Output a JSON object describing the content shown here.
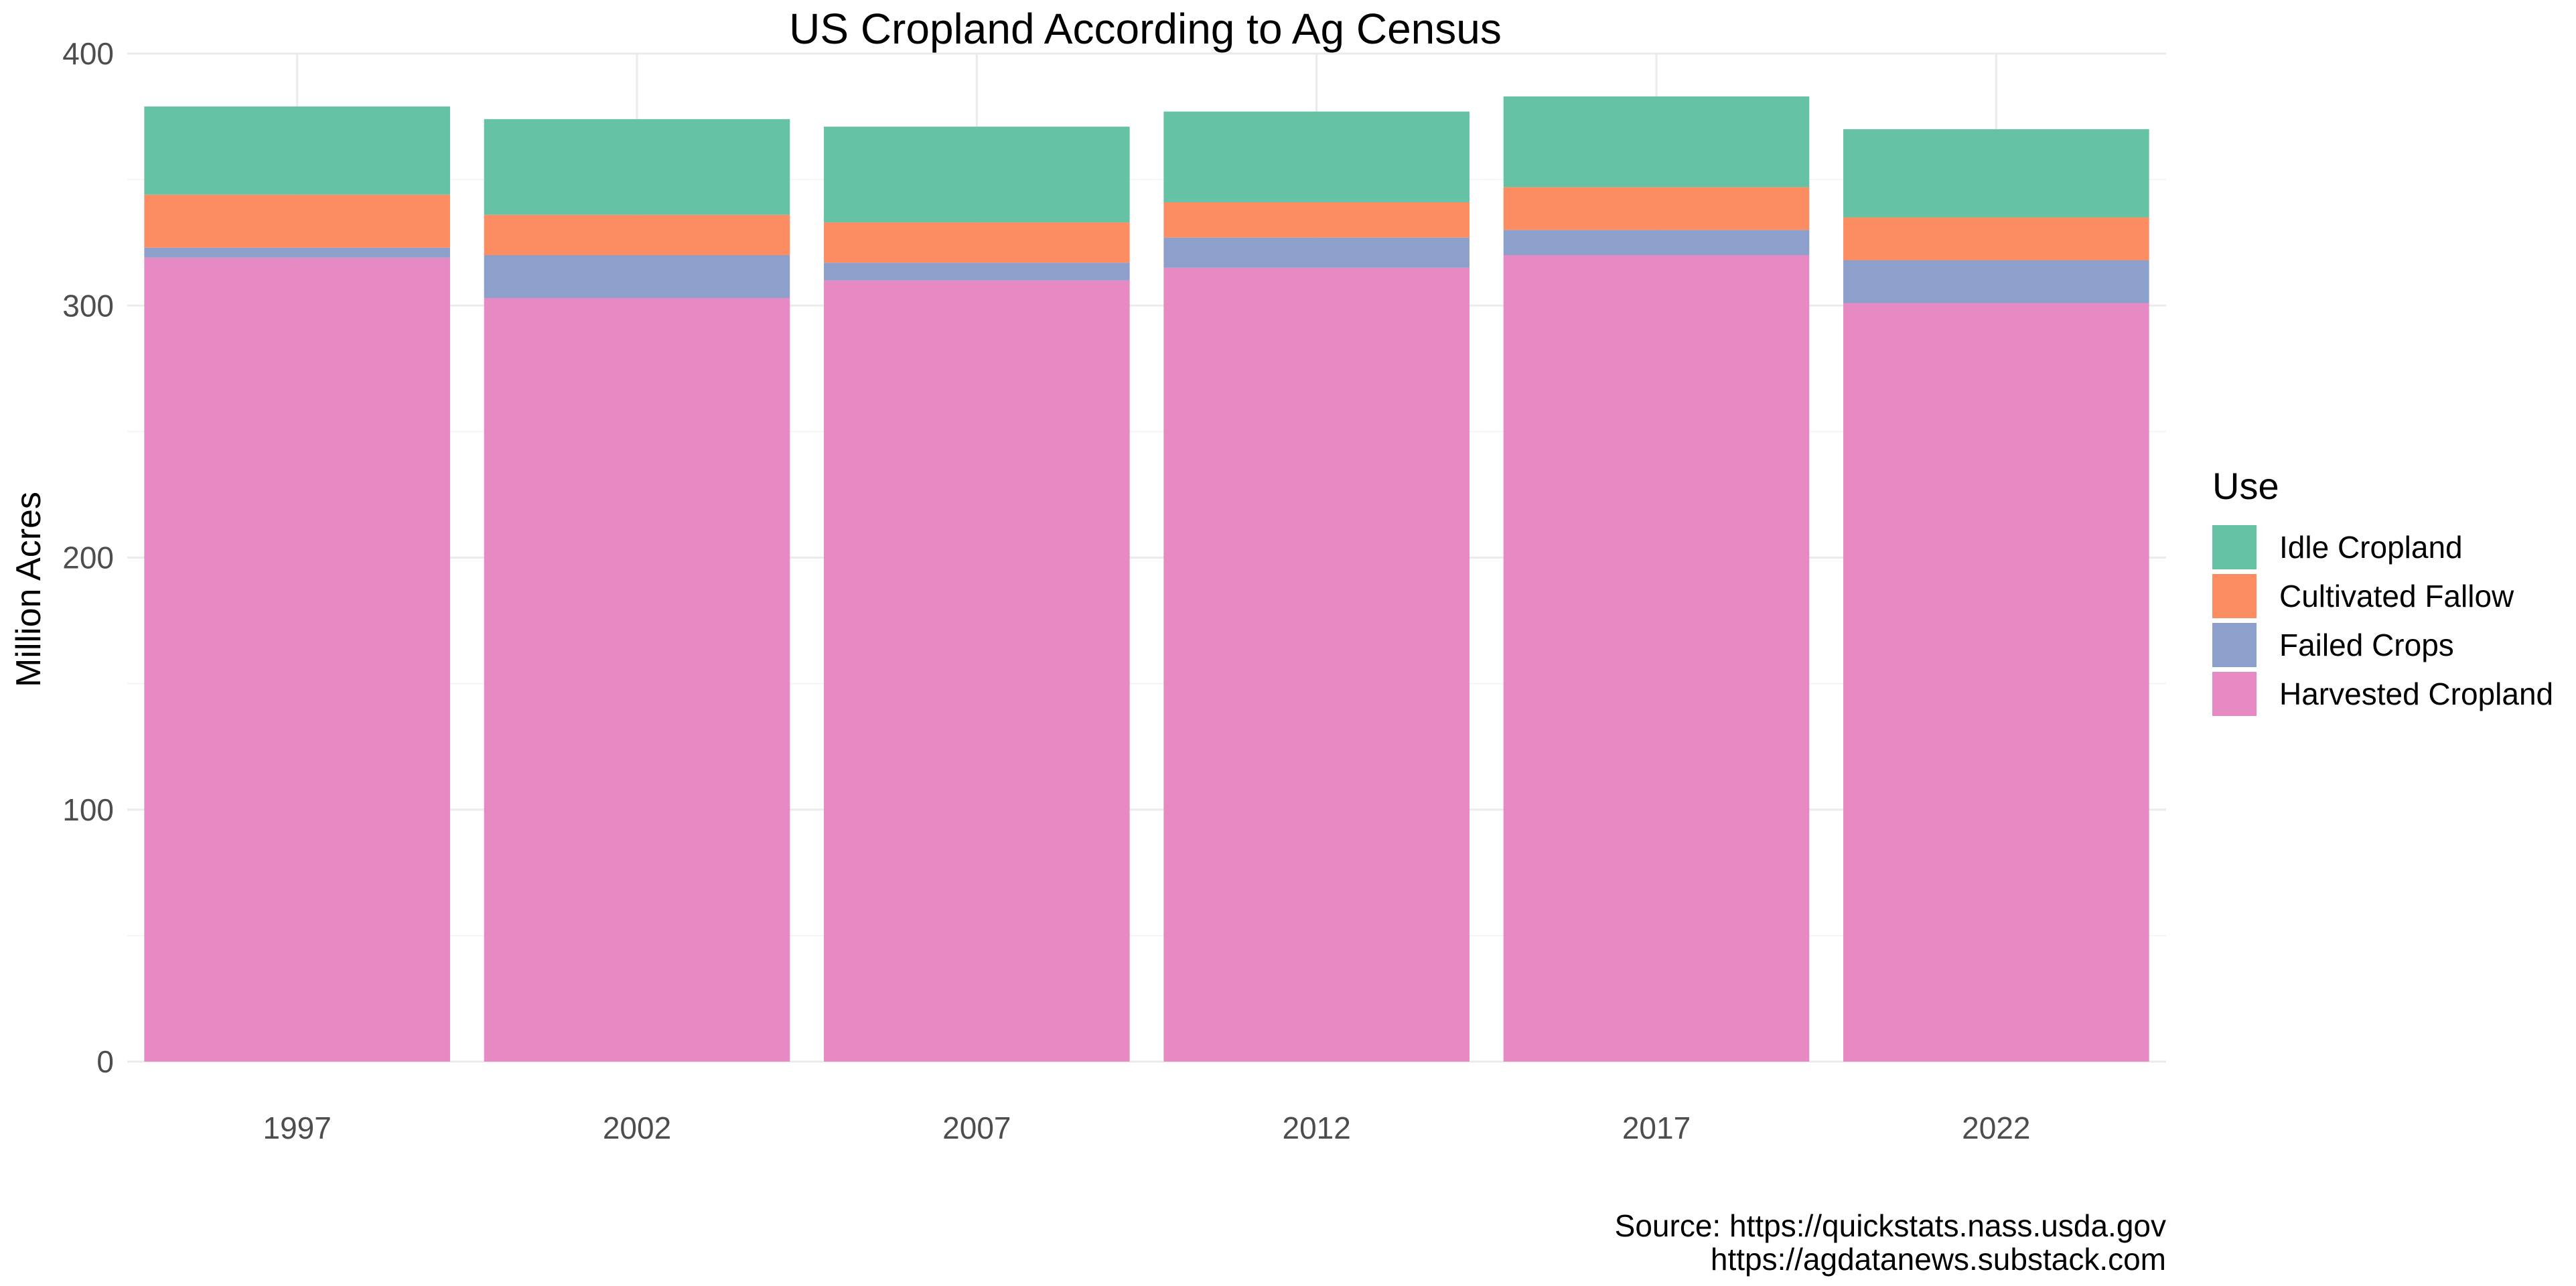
{
  "chart_data": {
    "type": "bar",
    "stacked": true,
    "title": "US Cropland According to Ag Census",
    "xlabel": "",
    "ylabel": "Million Acres",
    "ylim": [
      0,
      400
    ],
    "yticks": [
      0,
      100,
      200,
      300,
      400
    ],
    "categories": [
      "1997",
      "2002",
      "2007",
      "2012",
      "2017",
      "2022"
    ],
    "series": [
      {
        "name": "Harvested Cropland",
        "color": "#E78AC3",
        "values": [
          319,
          303,
          310,
          315,
          320,
          301
        ]
      },
      {
        "name": "Failed Crops",
        "color": "#8DA0CB",
        "values": [
          4,
          17,
          7,
          12,
          10,
          17
        ]
      },
      {
        "name": "Cultivated Fallow",
        "color": "#FC8D62",
        "values": [
          21,
          16,
          16,
          14,
          17,
          17
        ]
      },
      {
        "name": "Idle Cropland",
        "color": "#66C2A5",
        "values": [
          35,
          38,
          38,
          36,
          36,
          35
        ]
      }
    ],
    "legend": {
      "title": "Use",
      "position": "right",
      "items": [
        "Idle Cropland",
        "Cultivated Fallow",
        "Failed Crops",
        "Harvested Cropland"
      ]
    },
    "grid": true
  },
  "caption": {
    "line1": "Source: https://quickstats.nass.usda.gov",
    "line2": "https://agdatanews.substack.com"
  },
  "colors": {
    "grid_major": "#EBEBEB",
    "grid_minor": "#F4F4F4",
    "axis_text": "#4D4D4D",
    "text": "#000000"
  }
}
